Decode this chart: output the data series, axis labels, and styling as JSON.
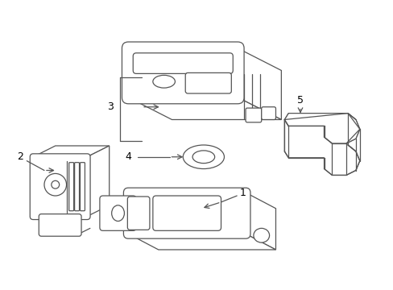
{
  "bg_color": "#ffffff",
  "line_color": "#555555",
  "label_color": "#000000",
  "figsize": [
    4.89,
    3.6
  ],
  "dpi": 100,
  "lw": 0.9
}
